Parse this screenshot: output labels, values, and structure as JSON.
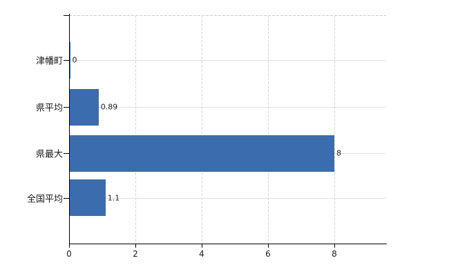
{
  "chart_data": {
    "type": "bar",
    "orientation": "horizontal",
    "title": "",
    "xlabel": "",
    "ylabel": "",
    "categories": [
      "津幡町",
      "県平均",
      "県最大",
      "全国平均"
    ],
    "values": [
      0,
      0.89,
      8,
      1.1
    ],
    "value_labels": [
      "0",
      "0.89",
      "8",
      "1.1"
    ],
    "xtick_labels": [
      "0",
      "2",
      "4",
      "6",
      "8"
    ],
    "xtick_values": [
      0,
      2,
      4,
      6,
      8
    ],
    "xlim": [
      0,
      9.58
    ],
    "grid": true,
    "legend": false,
    "bar_color": "#3b6cae",
    "axis_color": "#000000",
    "gridline_h_color": "#dde3dd",
    "gridline_v_color": "#d5d9d5",
    "background_color": "#ffffff",
    "text_color": "#1a1a1a"
  }
}
